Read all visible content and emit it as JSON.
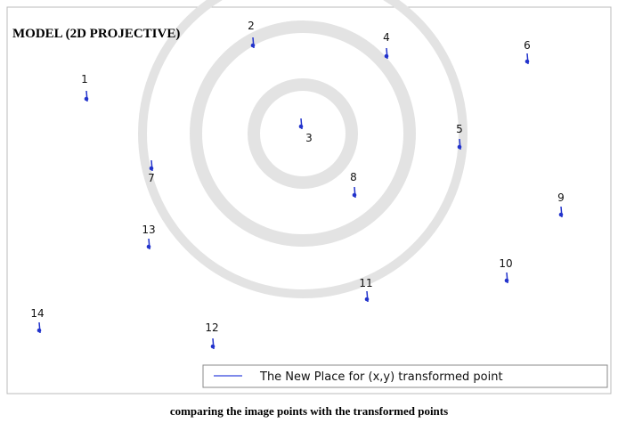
{
  "title": "MODEL (2D PROJECTIVE)",
  "points": [
    "1",
    "2",
    "3",
    "4",
    "5",
    "6",
    "7",
    "8",
    "9",
    "10",
    "11",
    "12",
    "13",
    "14"
  ],
  "legend": "The New Place for (x,y) transformed point",
  "caption": "comparing the image points with the transformed points"
}
